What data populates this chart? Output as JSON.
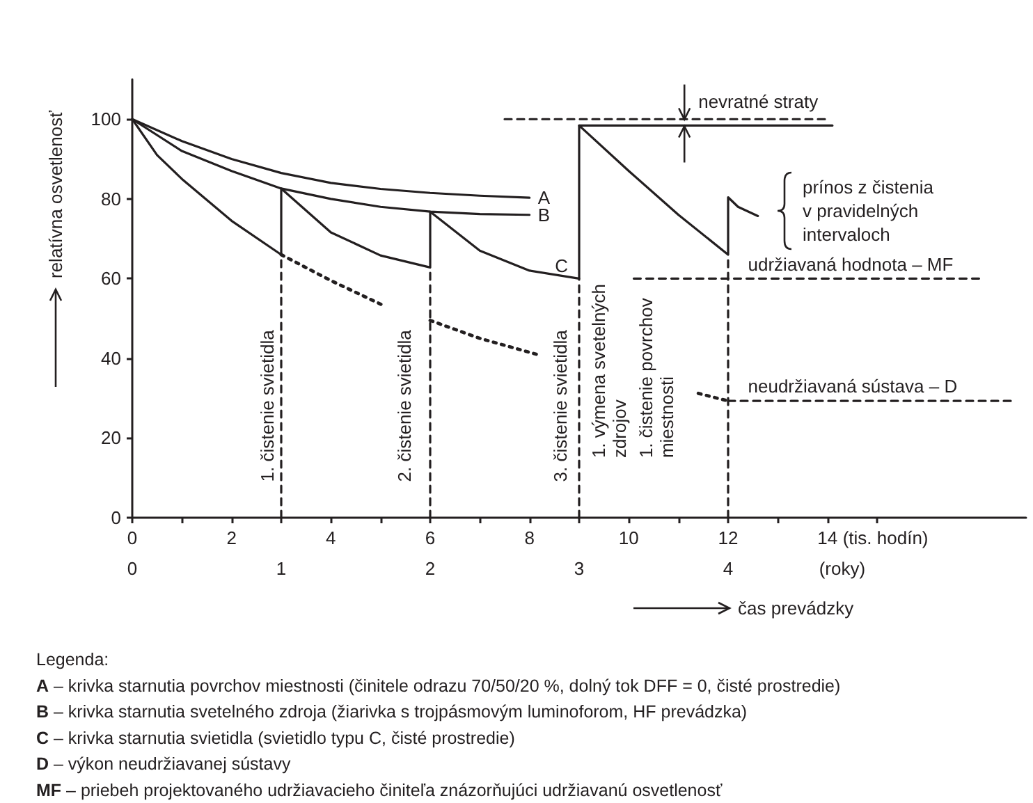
{
  "chart_data": {
    "type": "line",
    "ylabel": "relatívna osvetlenosť",
    "xlabel": "(tis. hodín)",
    "x2label": "(roky)",
    "xlim": [
      0,
      18
    ],
    "xticks": [
      0,
      {
        "value": 1,
        "label": null
      },
      2,
      {
        "value": 3,
        "label": null
      },
      4,
      {
        "value": 5,
        "label": null
      },
      6,
      {
        "value": 7,
        "label": null
      },
      8,
      {
        "value": 9,
        "label": null
      },
      10,
      {
        "value": 11,
        "label": null
      },
      12,
      {
        "value": 13,
        "label": null
      },
      14,
      {
        "value": 15,
        "label": null
      }
    ],
    "x2lim": [
      0,
      6
    ],
    "x2ticks": [
      0,
      1,
      2,
      3,
      4
    ],
    "ylim": [
      0,
      110
    ],
    "yticks": [
      0,
      20,
      40,
      60,
      80,
      100
    ],
    "marker": "none",
    "series": [
      {
        "name": "A",
        "color": "#231f20",
        "line_style": "solid",
        "x": [
          0,
          1,
          2,
          3,
          4,
          5,
          6,
          7,
          8
        ],
        "values": [
          100,
          94.5,
          90,
          86.5,
          84,
          82.5,
          81.5,
          80.8,
          80.3
        ]
      },
      {
        "name": "B",
        "color": "#231f20",
        "line_style": "solid",
        "x": [
          0,
          1,
          2,
          3,
          4,
          5,
          6,
          7,
          8
        ],
        "values": [
          100,
          92,
          87,
          82.6,
          80,
          78,
          76.8,
          76.2,
          76
        ]
      },
      {
        "name": "C",
        "color": "#231f20",
        "line_style": "solid",
        "x": [
          0,
          0.5,
          1,
          2,
          3,
          3,
          4,
          5,
          6,
          6,
          7,
          8,
          9,
          9,
          10,
          11,
          12,
          12,
          12.2,
          12.6
        ],
        "values": [
          100,
          91,
          85,
          74.5,
          66,
          82.6,
          71.6,
          65.8,
          62.8,
          76.8,
          67,
          62,
          60,
          98.4,
          87,
          76,
          66,
          80.4,
          78,
          75.7
        ]
      },
      {
        "color": "#231f20",
        "line_style": "dotted",
        "x": [
          3,
          4,
          5.1,
          5.5,
          6,
          7,
          8.2,
          9,
          11.4,
          12
        ],
        "values": [
          66,
          59.5,
          53,
          null,
          49.5,
          45,
          40.8,
          null,
          31.2,
          29.3
        ]
      },
      {
        "color": "#231f20",
        "line_style": "dashed",
        "x": [
          12,
          17.7
        ],
        "values": [
          29.3,
          29.3
        ]
      },
      {
        "color": "#231f20",
        "line_style": "dashed",
        "x": [
          10.1,
          17.1
        ],
        "values": [
          60,
          60
        ]
      },
      {
        "color": "#231f20",
        "line_style": "dashed",
        "x": [
          7.5,
          14
        ],
        "values": [
          100,
          100
        ]
      },
      {
        "color": "#231f20",
        "line_style": "solid",
        "x": [
          9,
          14.1
        ],
        "values": [
          98.4,
          98.4
        ]
      },
      {
        "color": "#231f20",
        "line_style": "dashed",
        "x": [
          3,
          3
        ],
        "values": [
          0,
          66
        ]
      },
      {
        "color": "#231f20",
        "line_style": "dashed",
        "x": [
          6,
          6
        ],
        "values": [
          0,
          62.8
        ]
      },
      {
        "color": "#231f20",
        "line_style": "dashed",
        "x": [
          9,
          9
        ],
        "values": [
          0,
          60
        ]
      },
      {
        "color": "#231f20",
        "line_style": "dashed",
        "x": [
          12,
          12
        ],
        "values": [
          0,
          66
        ]
      }
    ],
    "annotations": [
      "1. čistenie svietidla",
      "2. čistenie svietidla",
      "3. čistenie svietidla",
      "1. výmena svetelných\nzdrojov",
      "1. čistenie povrchov\nmiestnosti",
      "nevratné straty",
      "prínos z čistenia\nv pravidelných\nintervaloch",
      "udržiavaná hodnota – MF",
      "neudržiavaná sústava – D",
      "čas prevádzky",
      "Legenda:",
      "A – krivka starnutia povrchov miestnosti (činitele odrazu 70/50/20 %, dolný tok DFF = 0, čisté prostredie)",
      "B – krivka starnutia svetelného zdroja (žiarivka s trojpásmovým luminoforom, HF prevádzka)",
      "C – krivka starnutia svietidla (svietidlo typu C, čisté prostredie)",
      "D – výkon neudržiavanej sústavy",
      "MF – priebeh projektovaného udržiavacieho činiteľa znázorňujúci udržiavanú osvetlenosť"
    ]
  }
}
